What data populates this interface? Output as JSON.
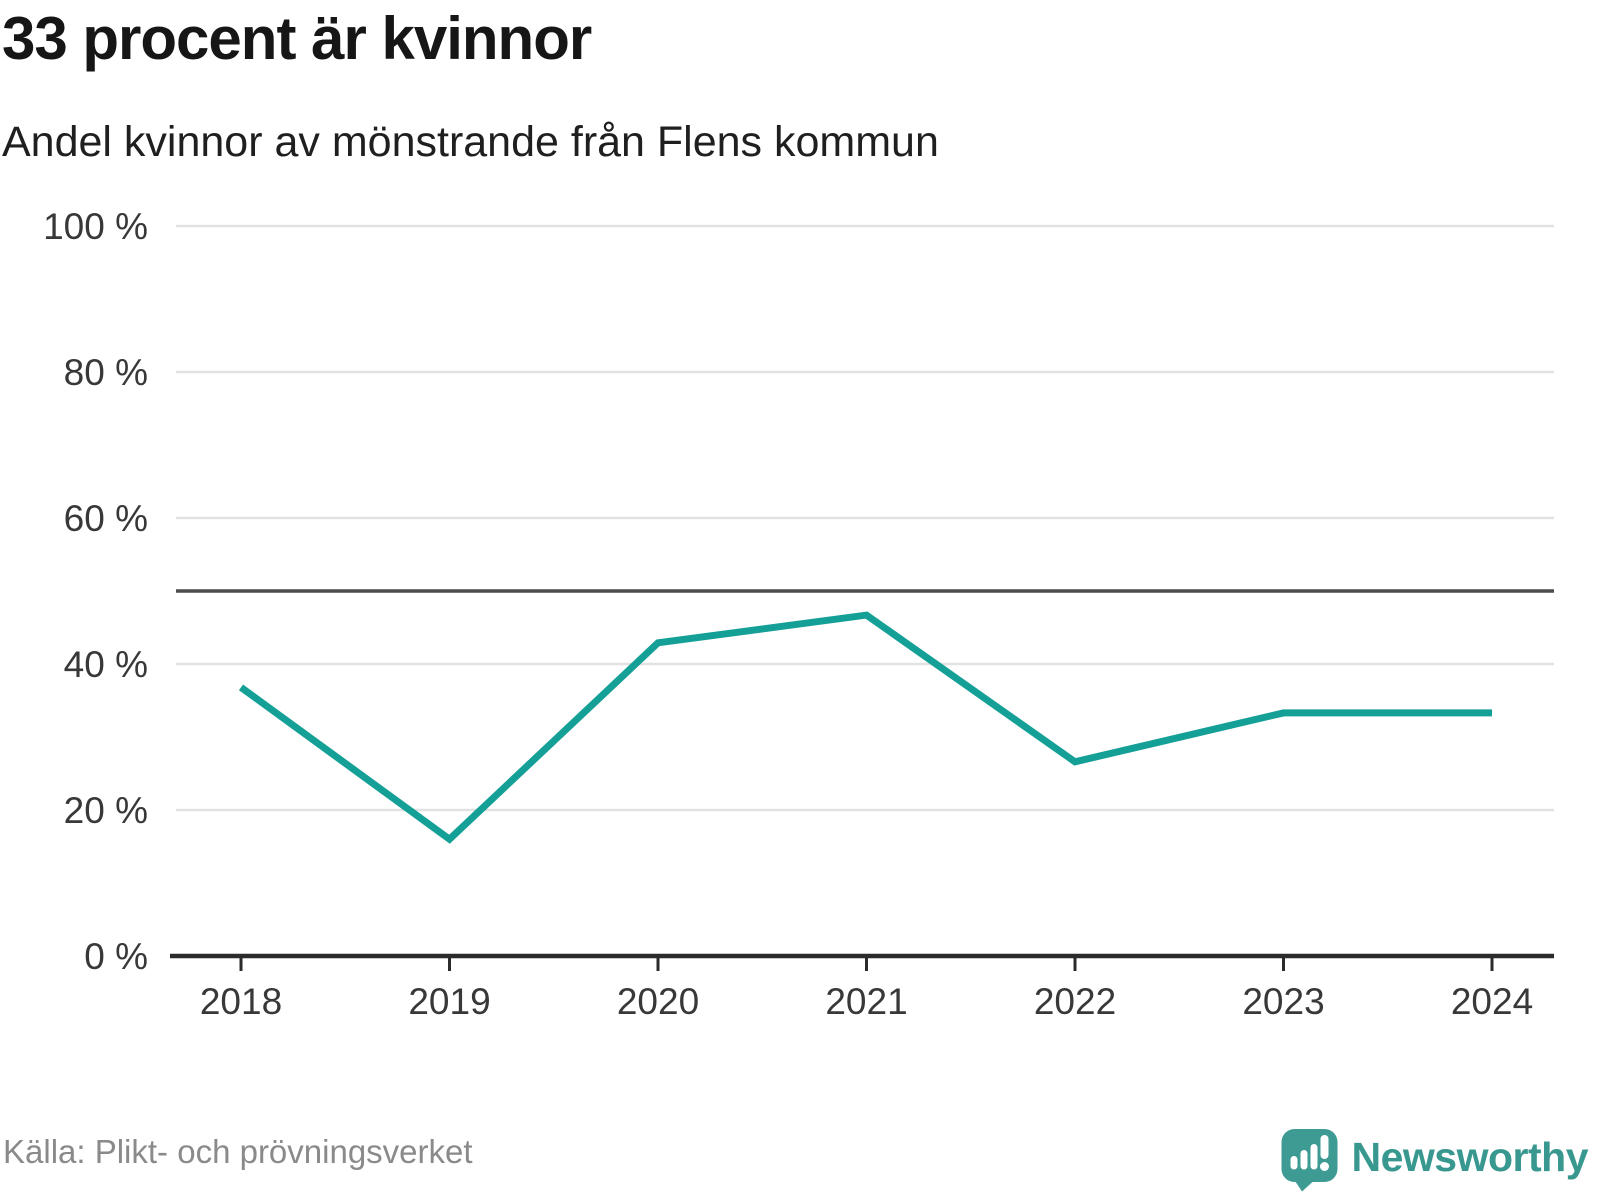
{
  "header": {
    "title": "33 procent är kvinnor",
    "subtitle": "Andel kvinnor av mönstrande från Flens kommun"
  },
  "chart_data": {
    "type": "line",
    "categories": [
      "2018",
      "2019",
      "2020",
      "2021",
      "2022",
      "2023",
      "2024"
    ],
    "series": [
      {
        "name": "Andel kvinnor av mönstrande",
        "values": [
          36.8,
          16.0,
          42.9,
          46.7,
          26.6,
          33.3,
          33.3
        ]
      }
    ],
    "title": "33 procent är kvinnor",
    "subtitle": "Andel kvinnor av mönstrande från Flens kommun",
    "xlabel": "",
    "ylabel": "",
    "ylim": [
      0,
      100
    ],
    "yticks": [
      0,
      20,
      40,
      60,
      80,
      100
    ],
    "ytick_labels": [
      "0 %",
      "20 %",
      "40 %",
      "60 %",
      "80 %",
      "100 %"
    ],
    "reference_line": 50,
    "grid": "horizontal-only",
    "legend": "none",
    "line_color": "#14a096",
    "axis_color": "#2b2b2b",
    "gridline_color": "#e2e2e2",
    "reference_line_color": "#4d4d4d",
    "tick_label_color": "#383838"
  },
  "footer": {
    "source": "Källa: Plikt- och prövningsverket"
  },
  "branding": {
    "name": "Newsworthy",
    "logo_color": "#3d9b93",
    "text_color": "#38988f"
  }
}
